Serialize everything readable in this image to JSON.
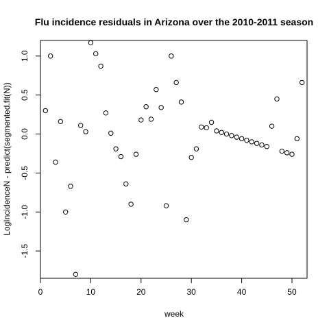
{
  "chart_data": {
    "type": "scatter",
    "title": "Flu incidence residuals in Arizona over the 2010-2011 season",
    "xlabel": "week",
    "ylabel": "LogIncidenceN - predict(segmented.fit(N))",
    "xlim": [
      0,
      53
    ],
    "ylim": [
      -1.85,
      1.2
    ],
    "xticks": [
      0,
      10,
      20,
      30,
      40,
      50
    ],
    "yticks": [
      -1.5,
      -1.0,
      -0.5,
      0.0,
      0.5,
      1.0
    ],
    "ytick_labels": [
      "-1.5",
      "-1.0",
      "-0.5",
      "0.0",
      "0.5",
      "1.0"
    ],
    "grid": false,
    "marker": "open-circle",
    "x": [
      1,
      2,
      3,
      4,
      5,
      6,
      7,
      8,
      9,
      10,
      11,
      12,
      13,
      14,
      15,
      16,
      17,
      18,
      19,
      20,
      21,
      22,
      23,
      24,
      25,
      26,
      27,
      28,
      29,
      30,
      31,
      32,
      33,
      34,
      35,
      36,
      37,
      38,
      39,
      40,
      41,
      42,
      43,
      44,
      45,
      46,
      47,
      48,
      49,
      50,
      51,
      52
    ],
    "y": [
      0.3,
      1.0,
      -0.36,
      0.16,
      -1.0,
      -0.67,
      -1.8,
      0.11,
      0.03,
      1.17,
      1.03,
      0.87,
      0.27,
      0.01,
      -0.19,
      -0.29,
      -0.64,
      -0.9,
      -0.26,
      0.18,
      0.35,
      0.19,
      0.57,
      0.34,
      -0.92,
      1.0,
      0.66,
      0.41,
      -1.1,
      -0.3,
      -0.19,
      0.09,
      0.08,
      0.15,
      0.04,
      0.02,
      0.0,
      -0.02,
      -0.04,
      -0.06,
      -0.08,
      -0.1,
      -0.12,
      -0.14,
      -0.16,
      0.1,
      0.45,
      -0.22,
      -0.24,
      -0.26,
      -0.06,
      0.66
    ]
  }
}
